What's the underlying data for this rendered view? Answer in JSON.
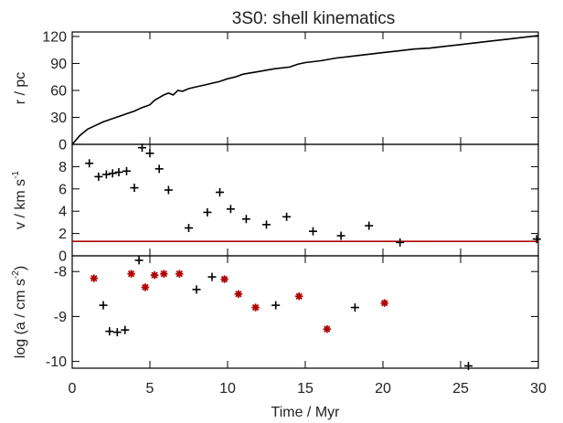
{
  "chart_data": {
    "title": "3S0: shell kinematics",
    "xlabel": "Time / Myr",
    "xlim": [
      0,
      30
    ],
    "xticks": [
      "0",
      "5",
      "10",
      "15",
      "20",
      "25",
      "30"
    ],
    "colors": {
      "highlight": "#b00000",
      "line": "#000000",
      "hline": "#b00000"
    },
    "panels": [
      {
        "type": "line",
        "ylabel": "r / pc",
        "ylim": [
          0,
          125
        ],
        "yticks": [
          "0",
          "30",
          "60",
          "90",
          "120"
        ],
        "x": [
          0,
          0.5,
          1,
          1.5,
          2,
          2.5,
          3,
          3.5,
          4,
          4.5,
          5,
          5.3,
          5.6,
          5.9,
          6.2,
          6.5,
          6.8,
          7.1,
          7.5,
          8,
          8.5,
          9,
          9.5,
          10,
          10.5,
          11,
          12,
          13,
          14,
          14.5,
          15,
          16,
          17,
          18,
          19,
          20,
          21,
          22,
          23,
          24,
          25,
          26,
          27,
          28,
          29,
          30
        ],
        "y": [
          0,
          10,
          17,
          21,
          25,
          28,
          31,
          34,
          37,
          41,
          44,
          49,
          52,
          55,
          57,
          55,
          60,
          59,
          62,
          64,
          66,
          68,
          70,
          73,
          75,
          78,
          81,
          84,
          86,
          89,
          91,
          93,
          96,
          98,
          100,
          102,
          104,
          106,
          107,
          109,
          111,
          113,
          115,
          117,
          119,
          121
        ]
      },
      {
        "type": "scatter",
        "ylabel": "v / km s",
        "ylabel_sup": "-1",
        "ylim": [
          0,
          10
        ],
        "yticks": [
          "0",
          "2",
          "4",
          "6",
          "8"
        ],
        "hline": 1.3,
        "points": [
          {
            "x": 1.1,
            "y": 8.3
          },
          {
            "x": 1.7,
            "y": 7.1
          },
          {
            "x": 2.2,
            "y": 7.3
          },
          {
            "x": 2.6,
            "y": 7.4
          },
          {
            "x": 3.0,
            "y": 7.5
          },
          {
            "x": 3.5,
            "y": 7.6
          },
          {
            "x": 4.0,
            "y": 6.1
          },
          {
            "x": 4.5,
            "y": 9.7
          },
          {
            "x": 5.0,
            "y": 9.2
          },
          {
            "x": 5.6,
            "y": 7.8
          },
          {
            "x": 6.2,
            "y": 5.9
          },
          {
            "x": 7.5,
            "y": 2.5
          },
          {
            "x": 8.7,
            "y": 3.9
          },
          {
            "x": 9.5,
            "y": 5.7
          },
          {
            "x": 10.2,
            "y": 4.2
          },
          {
            "x": 11.2,
            "y": 3.3
          },
          {
            "x": 12.5,
            "y": 2.8
          },
          {
            "x": 13.8,
            "y": 3.5
          },
          {
            "x": 15.5,
            "y": 2.2
          },
          {
            "x": 17.3,
            "y": 1.8
          },
          {
            "x": 19.1,
            "y": 2.7
          },
          {
            "x": 21.1,
            "y": 1.2
          },
          {
            "x": 29.9,
            "y": 1.5
          }
        ]
      },
      {
        "type": "scatter",
        "ylabel": "log (a / cm s",
        "ylabel_sup": "-2",
        "ylabel_end": ")",
        "ylim": [
          -10.15,
          -7.65
        ],
        "yticks": [
          "-8",
          "-9",
          "-10"
        ],
        "points": [
          {
            "x": 1.4,
            "y": -8.15,
            "highlight": true
          },
          {
            "x": 2.0,
            "y": -8.75,
            "highlight": false
          },
          {
            "x": 2.4,
            "y": -9.33,
            "highlight": false
          },
          {
            "x": 2.9,
            "y": -9.35,
            "highlight": false
          },
          {
            "x": 3.4,
            "y": -9.3,
            "highlight": false
          },
          {
            "x": 3.8,
            "y": -8.05,
            "highlight": true
          },
          {
            "x": 4.3,
            "y": -7.75,
            "highlight": false
          },
          {
            "x": 4.7,
            "y": -8.35,
            "highlight": true
          },
          {
            "x": 5.3,
            "y": -8.08,
            "highlight": true
          },
          {
            "x": 5.9,
            "y": -8.05,
            "highlight": true
          },
          {
            "x": 6.9,
            "y": -8.05,
            "highlight": true
          },
          {
            "x": 8.0,
            "y": -8.4,
            "highlight": false
          },
          {
            "x": 9.0,
            "y": -8.12,
            "highlight": false
          },
          {
            "x": 9.8,
            "y": -8.17,
            "highlight": true
          },
          {
            "x": 10.7,
            "y": -8.5,
            "highlight": true
          },
          {
            "x": 11.8,
            "y": -8.8,
            "highlight": true
          },
          {
            "x": 13.1,
            "y": -8.75,
            "highlight": false
          },
          {
            "x": 14.6,
            "y": -8.55,
            "highlight": true
          },
          {
            "x": 16.4,
            "y": -9.28,
            "highlight": true
          },
          {
            "x": 18.2,
            "y": -8.8,
            "highlight": false
          },
          {
            "x": 20.1,
            "y": -8.7,
            "highlight": true
          },
          {
            "x": 25.5,
            "y": -10.1,
            "highlight": false
          }
        ]
      }
    ]
  }
}
